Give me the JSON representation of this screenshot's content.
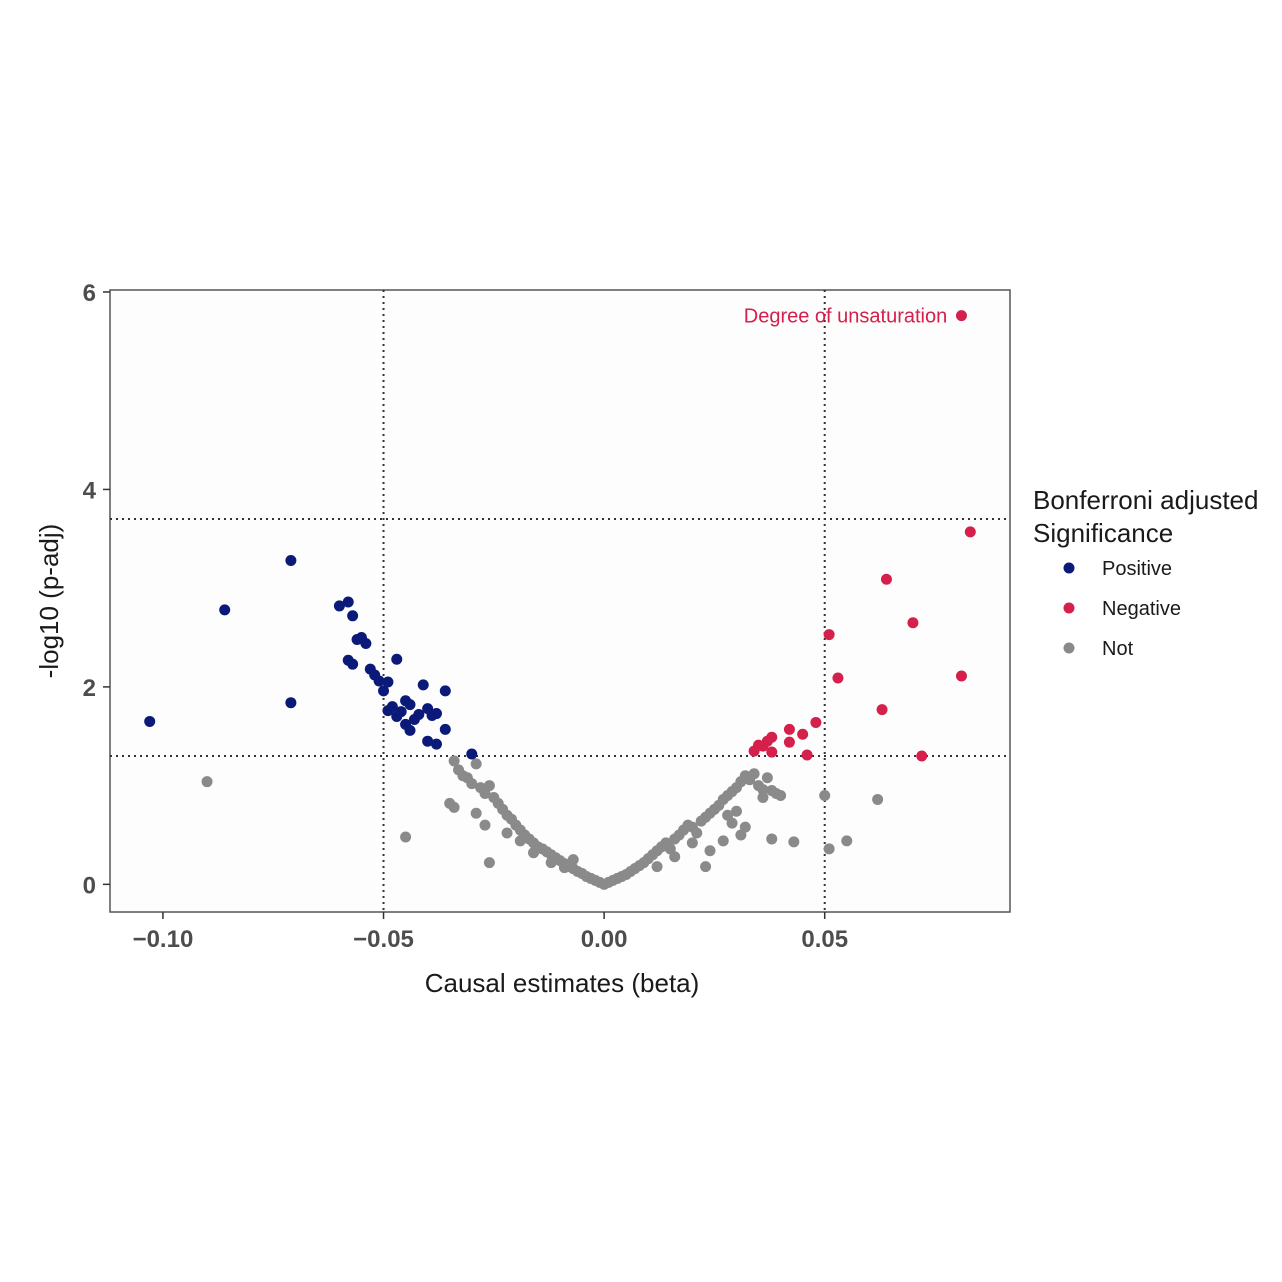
{
  "chart_data": {
    "type": "scatter",
    "title": "",
    "xlabel": "Causal estimates (beta)",
    "ylabel": "-log10 (p-adj)",
    "xlim": [
      -0.112,
      0.092
    ],
    "ylim": [
      -0.28,
      6.02
    ],
    "x_ticks": [
      -0.1,
      -0.05,
      0.0,
      0.05
    ],
    "x_tick_labels": [
      "-0.10",
      "-0.05",
      "0.00",
      "0.05"
    ],
    "y_ticks": [
      0,
      2,
      4,
      6
    ],
    "y_tick_labels": [
      "0",
      "2",
      "4",
      "6"
    ],
    "grid": false,
    "reference_lines": {
      "vertical": [
        -0.05,
        0.05
      ],
      "horizontal": [
        1.3,
        3.7
      ],
      "style": "dotted"
    },
    "legend": {
      "title_line1": "Bonferroni adjusted",
      "title_line2": "Significance",
      "placement": "right",
      "entries": [
        {
          "label": "Positive",
          "color": "#0b1a78"
        },
        {
          "label": "Negative",
          "color": "#d4204a"
        },
        {
          "label": "Not",
          "color": "#8a8a8a"
        }
      ]
    },
    "annotations": [
      {
        "text": "Degree of unsaturation",
        "x": 0.0805,
        "y": 5.76,
        "color": "#d4204a"
      }
    ],
    "series": [
      {
        "name": "Positive",
        "color": "#0b1a78",
        "points": [
          [
            -0.103,
            1.65
          ],
          [
            -0.086,
            2.78
          ],
          [
            -0.071,
            3.28
          ],
          [
            -0.071,
            1.84
          ],
          [
            -0.06,
            2.82
          ],
          [
            -0.058,
            2.86
          ],
          [
            -0.057,
            2.72
          ],
          [
            -0.056,
            2.48
          ],
          [
            -0.055,
            2.5
          ],
          [
            -0.054,
            2.44
          ],
          [
            -0.058,
            2.27
          ],
          [
            -0.057,
            2.23
          ],
          [
            -0.053,
            2.18
          ],
          [
            -0.052,
            2.12
          ],
          [
            -0.051,
            2.06
          ],
          [
            -0.05,
            1.96
          ],
          [
            -0.049,
            2.05
          ],
          [
            -0.047,
            2.28
          ],
          [
            -0.048,
            1.8
          ],
          [
            -0.046,
            1.75
          ],
          [
            -0.045,
            1.86
          ],
          [
            -0.044,
            1.82
          ],
          [
            -0.047,
            1.7
          ],
          [
            -0.043,
            1.67
          ],
          [
            -0.042,
            1.72
          ],
          [
            -0.041,
            2.02
          ],
          [
            -0.04,
            1.78
          ],
          [
            -0.039,
            1.71
          ],
          [
            -0.038,
            1.73
          ],
          [
            -0.036,
            1.96
          ],
          [
            -0.036,
            1.57
          ],
          [
            -0.04,
            1.45
          ],
          [
            -0.038,
            1.42
          ],
          [
            -0.044,
            1.56
          ],
          [
            -0.045,
            1.62
          ],
          [
            -0.049,
            1.76
          ],
          [
            -0.03,
            1.32
          ]
        ]
      },
      {
        "name": "Negative",
        "color": "#d4204a",
        "points": [
          [
            0.081,
            5.76
          ],
          [
            0.083,
            3.57
          ],
          [
            0.064,
            3.09
          ],
          [
            0.07,
            2.65
          ],
          [
            0.051,
            2.53
          ],
          [
            0.081,
            2.11
          ],
          [
            0.053,
            2.09
          ],
          [
            0.063,
            1.77
          ],
          [
            0.048,
            1.64
          ],
          [
            0.042,
            1.57
          ],
          [
            0.045,
            1.52
          ],
          [
            0.038,
            1.49
          ],
          [
            0.037,
            1.45
          ],
          [
            0.042,
            1.44
          ],
          [
            0.036,
            1.4
          ],
          [
            0.035,
            1.41
          ],
          [
            0.034,
            1.35
          ],
          [
            0.038,
            1.34
          ],
          [
            0.046,
            1.31
          ],
          [
            0.072,
            1.3
          ]
        ]
      },
      {
        "name": "Not",
        "color": "#8a8a8a",
        "points": [
          [
            -0.09,
            1.04
          ],
          [
            -0.045,
            0.48
          ],
          [
            -0.026,
            0.22
          ],
          [
            -0.034,
            1.25
          ],
          [
            -0.033,
            1.16
          ],
          [
            -0.032,
            1.1
          ],
          [
            -0.031,
            1.08
          ],
          [
            -0.03,
            1.02
          ],
          [
            -0.029,
            1.22
          ],
          [
            -0.028,
            0.98
          ],
          [
            -0.027,
            0.92
          ],
          [
            -0.026,
            1.0
          ],
          [
            -0.025,
            0.88
          ],
          [
            -0.024,
            0.82
          ],
          [
            -0.023,
            0.76
          ],
          [
            -0.022,
            0.7
          ],
          [
            -0.021,
            0.66
          ],
          [
            -0.02,
            0.6
          ],
          [
            -0.019,
            0.55
          ],
          [
            -0.018,
            0.5
          ],
          [
            -0.017,
            0.46
          ],
          [
            -0.016,
            0.42
          ],
          [
            -0.015,
            0.38
          ],
          [
            -0.014,
            0.36
          ],
          [
            -0.013,
            0.33
          ],
          [
            -0.012,
            0.3
          ],
          [
            -0.011,
            0.27
          ],
          [
            -0.01,
            0.24
          ],
          [
            -0.009,
            0.21
          ],
          [
            -0.008,
            0.18
          ],
          [
            -0.007,
            0.16
          ],
          [
            -0.006,
            0.13
          ],
          [
            -0.005,
            0.11
          ],
          [
            -0.004,
            0.08
          ],
          [
            -0.003,
            0.06
          ],
          [
            -0.002,
            0.04
          ],
          [
            -0.001,
            0.02
          ],
          [
            -0.035,
            0.82
          ],
          [
            -0.034,
            0.78
          ],
          [
            -0.029,
            0.72
          ],
          [
            -0.027,
            0.6
          ],
          [
            -0.022,
            0.52
          ],
          [
            -0.019,
            0.44
          ],
          [
            -0.016,
            0.32
          ],
          [
            -0.012,
            0.22
          ],
          [
            -0.009,
            0.17
          ],
          [
            -0.007,
            0.25
          ],
          [
            0.0,
            0.0
          ],
          [
            0.001,
            0.02
          ],
          [
            0.002,
            0.04
          ],
          [
            0.003,
            0.06
          ],
          [
            0.004,
            0.08
          ],
          [
            0.005,
            0.1
          ],
          [
            0.006,
            0.13
          ],
          [
            0.007,
            0.16
          ],
          [
            0.008,
            0.19
          ],
          [
            0.009,
            0.22
          ],
          [
            0.01,
            0.26
          ],
          [
            0.011,
            0.3
          ],
          [
            0.012,
            0.34
          ],
          [
            0.013,
            0.38
          ],
          [
            0.014,
            0.42
          ],
          [
            0.015,
            0.36
          ],
          [
            0.016,
            0.46
          ],
          [
            0.017,
            0.5
          ],
          [
            0.018,
            0.55
          ],
          [
            0.019,
            0.6
          ],
          [
            0.02,
            0.58
          ],
          [
            0.021,
            0.52
          ],
          [
            0.022,
            0.64
          ],
          [
            0.023,
            0.68
          ],
          [
            0.024,
            0.72
          ],
          [
            0.025,
            0.76
          ],
          [
            0.026,
            0.8
          ],
          [
            0.027,
            0.86
          ],
          [
            0.028,
            0.9
          ],
          [
            0.029,
            0.94
          ],
          [
            0.03,
            0.98
          ],
          [
            0.031,
            1.04
          ],
          [
            0.032,
            1.1
          ],
          [
            0.033,
            1.06
          ],
          [
            0.034,
            1.12
          ],
          [
            0.035,
            1.0
          ],
          [
            0.036,
            0.96
          ],
          [
            0.037,
            1.08
          ],
          [
            0.038,
            0.95
          ],
          [
            0.039,
            0.92
          ],
          [
            0.04,
            0.9
          ],
          [
            0.012,
            0.18
          ],
          [
            0.016,
            0.28
          ],
          [
            0.02,
            0.42
          ],
          [
            0.023,
            0.18
          ],
          [
            0.024,
            0.34
          ],
          [
            0.027,
            0.44
          ],
          [
            0.029,
            0.62
          ],
          [
            0.031,
            0.5
          ],
          [
            0.032,
            0.58
          ],
          [
            0.036,
            0.88
          ],
          [
            0.038,
            0.46
          ],
          [
            0.043,
            0.43
          ],
          [
            0.05,
            0.9
          ],
          [
            0.051,
            0.36
          ],
          [
            0.055,
            0.44
          ],
          [
            0.062,
            0.86
          ],
          [
            0.028,
            0.7
          ],
          [
            0.03,
            0.74
          ]
        ]
      }
    ]
  }
}
